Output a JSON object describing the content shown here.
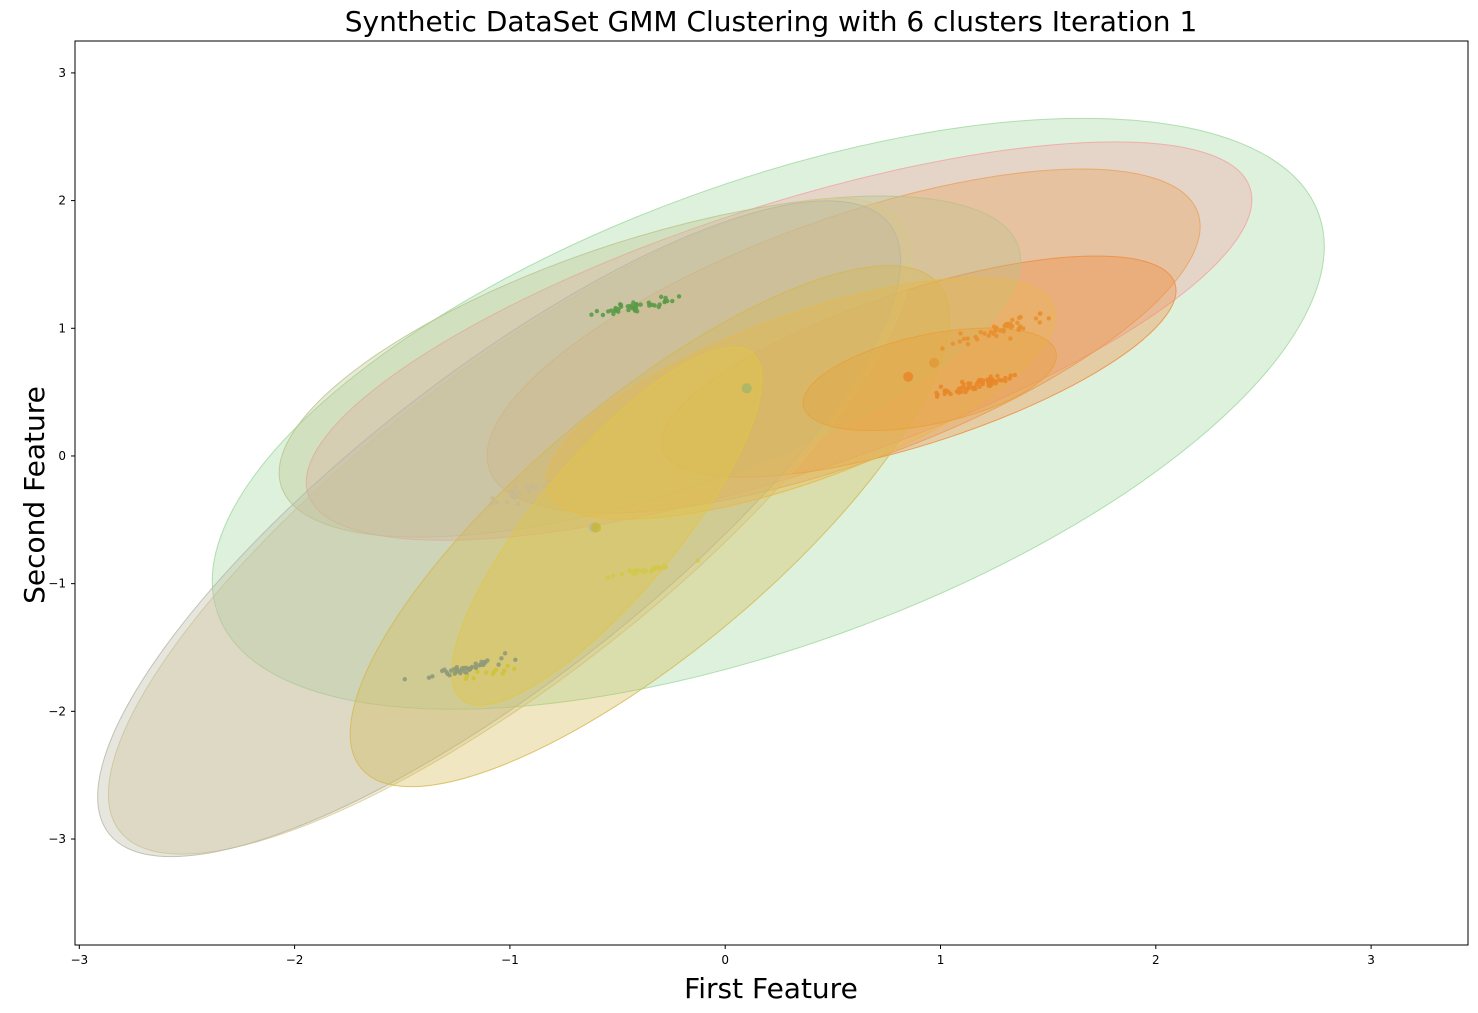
{
  "chart_data": {
    "type": "scatter",
    "title": "Synthetic DataSet GMM Clustering with 6 clusters Iteration 1",
    "xlabel": "First Feature",
    "ylabel": "Second Feature",
    "xlim": [
      -3.02,
      3.45
    ],
    "ylim": [
      -3.83,
      3.25
    ],
    "xticks": [
      -3,
      -2,
      -1,
      0,
      1,
      2,
      3
    ],
    "yticks": [
      -3,
      -2,
      -1,
      0,
      1,
      2,
      3
    ],
    "grid": false,
    "legend": "none",
    "ellipses": [
      {
        "cx": 0.2,
        "cy": 0.33,
        "a": 2.72,
        "b": 1.81,
        "angle": 20,
        "color": "#9ed89e"
      },
      {
        "cx": 0.25,
        "cy": 0.9,
        "a": 2.3,
        "b": 1.05,
        "angle": 18,
        "color": "#f4a0a0"
      },
      {
        "cx": 0.55,
        "cy": 0.9,
        "a": 1.75,
        "b": 0.95,
        "angle": 20,
        "color": "#e8a15a"
      },
      {
        "cx": 0.9,
        "cy": 0.7,
        "a": 1.25,
        "b": 0.6,
        "angle": 18,
        "color": "#f08a3a"
      },
      {
        "cx": -0.35,
        "cy": 0.7,
        "a": 1.8,
        "b": 1.0,
        "angle": 18,
        "color": "#b9c38a"
      },
      {
        "cx": -1.0,
        "cy": -0.55,
        "a": 2.3,
        "b": 1.2,
        "angle": 38,
        "color": "#d6c98e"
      },
      {
        "cx": -1.05,
        "cy": -0.57,
        "a": 2.3,
        "b": 1.2,
        "angle": 38,
        "color": "#b7b7a4"
      },
      {
        "cx": -0.35,
        "cy": -0.55,
        "a": 1.75,
        "b": 0.98,
        "angle": 40,
        "color": "#d4b84f"
      },
      {
        "cx": 0.35,
        "cy": 0.45,
        "a": 1.25,
        "b": 0.65,
        "angle": 20,
        "color": "#e8b84a"
      },
      {
        "cx": 0.95,
        "cy": 0.6,
        "a": 0.6,
        "b": 0.35,
        "angle": 12,
        "color": "#e8a03a"
      },
      {
        "cx": -0.55,
        "cy": -0.55,
        "a": 1.05,
        "b": 0.55,
        "angle": 50,
        "color": "#e2c740"
      }
    ],
    "series": [
      {
        "color": "#5a9a46",
        "cx": -0.42,
        "cy": 1.17,
        "sx": 0.1,
        "sy": 0.04,
        "n": 40
      },
      {
        "color": "#e8872a",
        "cx": 1.15,
        "cy": 0.55,
        "sx": 0.1,
        "sy": 0.05,
        "n": 60
      },
      {
        "color": "#e8902f",
        "cx": 1.3,
        "cy": 1.0,
        "sx": 0.12,
        "sy": 0.06,
        "n": 45
      },
      {
        "color": "#8f9a78",
        "cx": -1.18,
        "cy": -1.65,
        "sx": 0.08,
        "sy": 0.04,
        "n": 45
      },
      {
        "color": "#cfc33a",
        "cx": -1.08,
        "cy": -1.7,
        "sx": 0.06,
        "sy": 0.03,
        "n": 12
      },
      {
        "color": "#c9b890",
        "cx": -0.97,
        "cy": -0.3,
        "sx": 0.07,
        "sy": 0.05,
        "n": 22
      },
      {
        "color": "#d3c84a",
        "cx": -0.38,
        "cy": -0.9,
        "sx": 0.08,
        "sy": 0.03,
        "n": 28
      }
    ],
    "centroids": [
      {
        "x": 0.1,
        "y": 0.53,
        "color": "#a6b56a"
      },
      {
        "x": 0.85,
        "y": 0.62,
        "color": "#e8872a"
      },
      {
        "x": 0.97,
        "y": 0.73,
        "color": "#e09a3a"
      },
      {
        "x": -0.61,
        "y": -0.56,
        "color": "#b8b89a"
      },
      {
        "x": -0.6,
        "y": -0.56,
        "color": "#c9b63a"
      }
    ]
  }
}
